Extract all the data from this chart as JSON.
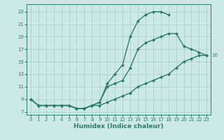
{
  "title": "",
  "xlabel": "Humidex (Indice chaleur)",
  "ylabel": "",
  "bg_color": "#cce8e8",
  "grid_color": "#b0d4d4",
  "line_color": "#2d7d6e",
  "marker": "D",
  "markersize": 2.5,
  "linewidth": 1.0,
  "xlim": [
    -0.5,
    23.5
  ],
  "ylim": [
    6.5,
    24.2
  ],
  "yticks": [
    7,
    9,
    11,
    13,
    15,
    17,
    19,
    21,
    23
  ],
  "xticks": [
    0,
    1,
    2,
    3,
    4,
    5,
    6,
    7,
    8,
    9,
    10,
    11,
    12,
    13,
    14,
    15,
    16,
    17,
    18,
    19,
    20,
    21,
    22,
    23
  ],
  "series": [
    {
      "x": [
        0,
        1,
        2,
        3,
        4,
        5,
        6,
        7,
        8,
        9,
        10,
        11,
        12,
        13,
        14,
        15,
        16,
        17,
        18
      ],
      "y": [
        9,
        8,
        8,
        8,
        8,
        8,
        7.5,
        7.5,
        8,
        8.5,
        11.5,
        13,
        14.5,
        19,
        21.5,
        22.5,
        23,
        23,
        22.5
      ]
    },
    {
      "x": [
        0,
        1,
        2,
        3,
        4,
        5,
        6,
        7,
        8,
        9,
        10,
        11,
        12,
        13,
        14,
        15,
        16,
        17,
        18,
        19,
        20,
        21,
        22,
        23
      ],
      "y": [
        9,
        8,
        8,
        8,
        8,
        8,
        7.5,
        7.5,
        8,
        8.5,
        11,
        11.5,
        12,
        14,
        17,
        18,
        18.5,
        19,
        19.5,
        19.5,
        17.5,
        17,
        16.5,
        16
      ]
    },
    {
      "x": [
        0,
        1,
        2,
        3,
        4,
        5,
        6,
        7,
        8,
        9,
        10,
        11,
        12,
        13,
        14,
        15,
        16,
        17,
        18,
        19,
        20,
        21,
        22,
        23
      ],
      "y": [
        9,
        8,
        8,
        8,
        8,
        8,
        7.5,
        7.5,
        8,
        8,
        8.5,
        9,
        9.5,
        10,
        11,
        11.5,
        12,
        12.5,
        13,
        14,
        15,
        15.5,
        16,
        16
      ]
    }
  ]
}
